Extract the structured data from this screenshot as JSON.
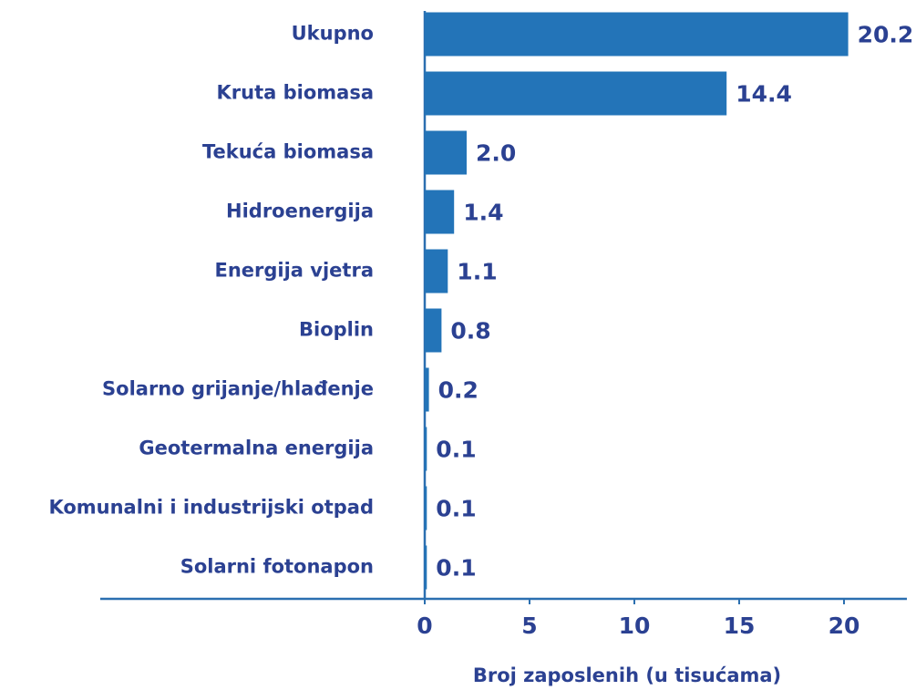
{
  "chart_data": {
    "type": "bar",
    "orientation": "horizontal",
    "categories": [
      "Ukupno",
      "Kruta biomasa",
      "Tekuća biomasa",
      "Hidroenergija",
      "Energija vjetra",
      "Bioplin",
      "Solarno grijanje/hlađenje",
      "Geotermalna energija",
      "Komunalni i industrijski otpad",
      "Solarni fotonapon"
    ],
    "values": [
      20.2,
      14.4,
      2.0,
      1.4,
      1.1,
      0.8,
      0.2,
      0.1,
      0.1,
      0.1
    ],
    "value_labels": [
      "20.2",
      "14.4",
      "2.0",
      "1.4",
      "1.1",
      "0.8",
      "0.2",
      "0.1",
      "0.1",
      "0.1"
    ],
    "color": "#2374b8",
    "xlabel": "Broj zaposlenih (u tisućama)",
    "xlim": [
      0,
      23
    ],
    "xticks": [
      0,
      5,
      10,
      15,
      20
    ],
    "grid": false
  }
}
